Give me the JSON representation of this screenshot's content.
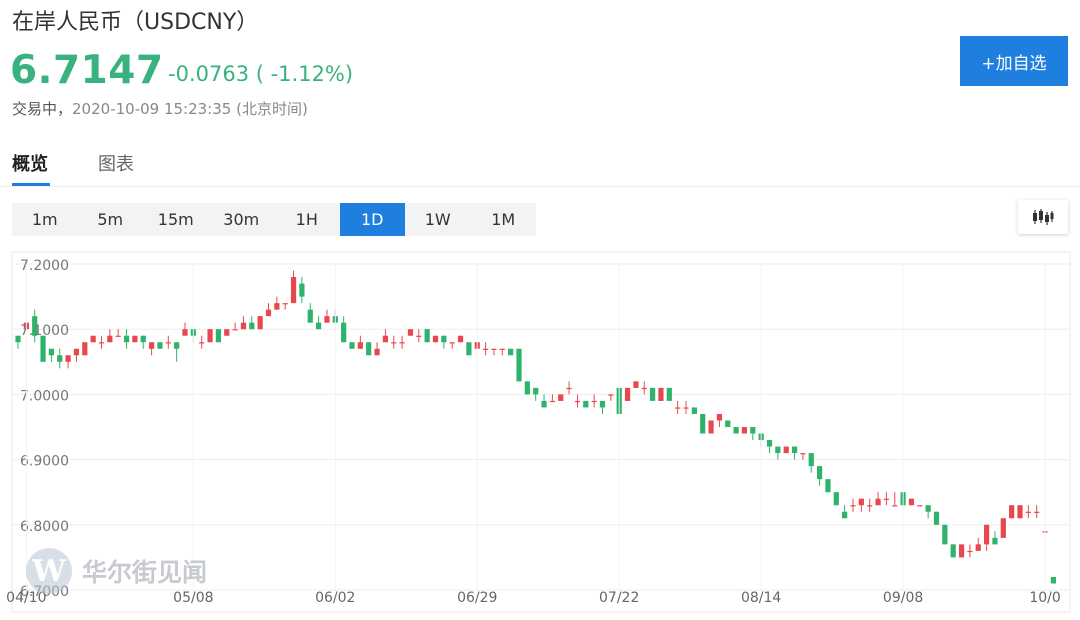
{
  "header": {
    "title": "在岸人民币（USDCNY）",
    "price": "6.7147",
    "change": "-0.0763 ( -1.12%)",
    "status": "交易中，",
    "timestamp": "2020-10-09 15:23:35 (北京时间)",
    "add_button": "+加自选"
  },
  "tabs": [
    {
      "label": "概览",
      "active": true
    },
    {
      "label": "图表",
      "active": false
    }
  ],
  "periods": [
    {
      "label": "1m",
      "active": false
    },
    {
      "label": "5m",
      "active": false
    },
    {
      "label": "15m",
      "active": false
    },
    {
      "label": "30m",
      "active": false
    },
    {
      "label": "1H",
      "active": false
    },
    {
      "label": "1D",
      "active": true
    },
    {
      "label": "1W",
      "active": false
    },
    {
      "label": "1M",
      "active": false
    }
  ],
  "chart_type_icon": "candlestick-icon",
  "watermark": {
    "logo": "W",
    "text": "华尔街见闻"
  },
  "colors": {
    "up": "#e8474d",
    "down": "#2fb36a",
    "accent": "#1f7fde"
  },
  "chart_data": {
    "type": "candlestick",
    "ylim": [
      6.7,
      7.2
    ],
    "yticks": [
      "7.2000",
      "7.1000",
      "7.0000",
      "6.9000",
      "6.8000",
      "6.7000"
    ],
    "x_tick_labels": [
      {
        "label": "04/10",
        "at": 1
      },
      {
        "label": "05/08",
        "at": 21
      },
      {
        "label": "06/02",
        "at": 38
      },
      {
        "label": "06/29",
        "at": 55
      },
      {
        "label": "07/22",
        "at": 72
      },
      {
        "label": "08/14",
        "at": 89
      },
      {
        "label": "09/08",
        "at": 106
      },
      {
        "label": "10/0",
        "at": 123
      }
    ],
    "grid": true,
    "candles": [
      [
        7.09,
        7.08,
        7.07,
        7.09
      ],
      [
        7.1,
        7.11,
        7.1,
        7.11
      ],
      [
        7.12,
        7.09,
        7.08,
        7.13
      ],
      [
        7.09,
        7.05,
        7.05,
        7.09
      ],
      [
        7.07,
        7.06,
        7.05,
        7.07
      ],
      [
        7.06,
        7.05,
        7.04,
        7.07
      ],
      [
        7.05,
        7.06,
        7.04,
        7.06
      ],
      [
        7.06,
        7.07,
        7.05,
        7.07
      ],
      [
        7.06,
        7.08,
        7.06,
        7.08
      ],
      [
        7.08,
        7.09,
        7.08,
        7.09
      ],
      [
        7.08,
        7.08,
        7.07,
        7.09
      ],
      [
        7.08,
        7.09,
        7.08,
        7.1
      ],
      [
        7.09,
        7.09,
        7.09,
        7.1
      ],
      [
        7.09,
        7.08,
        7.07,
        7.1
      ],
      [
        7.08,
        7.09,
        7.08,
        7.09
      ],
      [
        7.09,
        7.08,
        7.07,
        7.09
      ],
      [
        7.07,
        7.08,
        7.06,
        7.08
      ],
      [
        7.08,
        7.07,
        7.07,
        7.08
      ],
      [
        7.08,
        7.08,
        7.07,
        7.09
      ],
      [
        7.08,
        7.07,
        7.05,
        7.08
      ],
      [
        7.09,
        7.1,
        7.09,
        7.11
      ],
      [
        7.1,
        7.09,
        7.08,
        7.1
      ],
      [
        7.08,
        7.08,
        7.07,
        7.09
      ],
      [
        7.08,
        7.1,
        7.08,
        7.1
      ],
      [
        7.1,
        7.08,
        7.08,
        7.1
      ],
      [
        7.09,
        7.1,
        7.09,
        7.1
      ],
      [
        7.1,
        7.1,
        7.1,
        7.11
      ],
      [
        7.1,
        7.11,
        7.1,
        7.12
      ],
      [
        7.11,
        7.1,
        7.1,
        7.12
      ],
      [
        7.1,
        7.12,
        7.1,
        7.12
      ],
      [
        7.12,
        7.13,
        7.12,
        7.14
      ],
      [
        7.13,
        7.14,
        7.13,
        7.15
      ],
      [
        7.14,
        7.14,
        7.13,
        7.14
      ],
      [
        7.14,
        7.18,
        7.14,
        7.19
      ],
      [
        7.17,
        7.15,
        7.14,
        7.18
      ],
      [
        7.13,
        7.11,
        7.11,
        7.14
      ],
      [
        7.11,
        7.1,
        7.1,
        7.12
      ],
      [
        7.11,
        7.12,
        7.11,
        7.13
      ],
      [
        7.12,
        7.11,
        7.11,
        7.13
      ],
      [
        7.11,
        7.08,
        7.08,
        7.12
      ],
      [
        7.08,
        7.07,
        7.07,
        7.08
      ],
      [
        7.07,
        7.08,
        7.07,
        7.09
      ],
      [
        7.08,
        7.06,
        7.06,
        7.08
      ],
      [
        7.06,
        7.07,
        7.06,
        7.08
      ],
      [
        7.08,
        7.09,
        7.08,
        7.1
      ],
      [
        7.08,
        7.08,
        7.07,
        7.09
      ],
      [
        7.08,
        7.08,
        7.07,
        7.09
      ],
      [
        7.09,
        7.1,
        7.09,
        7.1
      ],
      [
        7.09,
        7.09,
        7.08,
        7.1
      ],
      [
        7.1,
        7.08,
        7.08,
        7.1
      ],
      [
        7.08,
        7.09,
        7.08,
        7.09
      ],
      [
        7.09,
        7.08,
        7.07,
        7.09
      ],
      [
        7.08,
        7.08,
        7.07,
        7.08
      ],
      [
        7.08,
        7.09,
        7.08,
        7.09
      ],
      [
        7.08,
        7.06,
        7.06,
        7.08
      ],
      [
        7.07,
        7.08,
        7.07,
        7.08
      ],
      [
        7.07,
        7.07,
        7.06,
        7.08
      ],
      [
        7.07,
        7.07,
        7.06,
        7.07
      ],
      [
        7.07,
        7.07,
        7.06,
        7.07
      ],
      [
        7.07,
        7.06,
        7.06,
        7.07
      ],
      [
        7.07,
        7.02,
        7.02,
        7.07
      ],
      [
        7.02,
        7.0,
        7.0,
        7.02
      ],
      [
        7.01,
        7.0,
        6.99,
        7.01
      ],
      [
        6.99,
        6.98,
        6.98,
        7.0
      ],
      [
        6.99,
        6.99,
        6.99,
        7.0
      ],
      [
        6.99,
        7.0,
        6.99,
        7.0
      ],
      [
        7.01,
        7.01,
        7.0,
        7.02
      ],
      [
        6.99,
        6.99,
        6.98,
        7.0
      ],
      [
        6.99,
        6.98,
        6.98,
        6.99
      ],
      [
        6.99,
        6.99,
        6.98,
        7.0
      ],
      [
        6.99,
        6.98,
        6.97,
        6.99
      ],
      [
        7.0,
        7.0,
        6.99,
        7.0
      ],
      [
        7.01,
        6.97,
        6.97,
        7.01
      ],
      [
        6.99,
        7.01,
        6.99,
        7.01
      ],
      [
        7.01,
        7.02,
        7.01,
        7.02
      ],
      [
        7.01,
        7.01,
        7.0,
        7.02
      ],
      [
        7.01,
        6.99,
        6.99,
        7.01
      ],
      [
        6.99,
        7.01,
        6.99,
        7.01
      ],
      [
        7.01,
        6.99,
        6.99,
        7.01
      ],
      [
        6.98,
        6.98,
        6.97,
        6.99
      ],
      [
        6.98,
        6.98,
        6.97,
        6.99
      ],
      [
        6.98,
        6.97,
        6.97,
        6.98
      ],
      [
        6.97,
        6.94,
        6.94,
        6.97
      ],
      [
        6.94,
        6.96,
        6.94,
        6.96
      ],
      [
        6.96,
        6.97,
        6.95,
        6.97
      ],
      [
        6.96,
        6.95,
        6.95,
        6.96
      ],
      [
        6.95,
        6.94,
        6.94,
        6.95
      ],
      [
        6.94,
        6.95,
        6.94,
        6.95
      ],
      [
        6.95,
        6.94,
        6.93,
        6.95
      ],
      [
        6.94,
        6.93,
        6.92,
        6.94
      ],
      [
        6.93,
        6.92,
        6.91,
        6.93
      ],
      [
        6.92,
        6.91,
        6.9,
        6.92
      ],
      [
        6.91,
        6.92,
        6.91,
        6.92
      ],
      [
        6.92,
        6.91,
        6.9,
        6.92
      ],
      [
        6.91,
        6.91,
        6.9,
        6.91
      ],
      [
        6.91,
        6.89,
        6.88,
        6.91
      ],
      [
        6.89,
        6.87,
        6.86,
        6.89
      ],
      [
        6.87,
        6.85,
        6.85,
        6.87
      ],
      [
        6.85,
        6.83,
        6.83,
        6.85
      ],
      [
        6.82,
        6.81,
        6.81,
        6.83
      ],
      [
        6.83,
        6.83,
        6.82,
        6.84
      ],
      [
        6.83,
        6.84,
        6.82,
        6.84
      ],
      [
        6.83,
        6.83,
        6.82,
        6.84
      ],
      [
        6.83,
        6.84,
        6.83,
        6.85
      ],
      [
        6.84,
        6.84,
        6.83,
        6.85
      ],
      [
        6.83,
        6.83,
        6.83,
        6.85
      ],
      [
        6.85,
        6.83,
        6.83,
        6.85
      ],
      [
        6.83,
        6.84,
        6.83,
        6.84
      ],
      [
        6.83,
        6.83,
        6.83,
        6.83
      ],
      [
        6.83,
        6.82,
        6.81,
        6.83
      ],
      [
        6.82,
        6.8,
        6.8,
        6.82
      ],
      [
        6.8,
        6.77,
        6.77,
        6.8
      ],
      [
        6.77,
        6.75,
        6.75,
        6.77
      ],
      [
        6.75,
        6.77,
        6.75,
        6.77
      ],
      [
        6.76,
        6.76,
        6.75,
        6.77
      ],
      [
        6.76,
        6.77,
        6.76,
        6.78
      ],
      [
        6.77,
        6.8,
        6.76,
        6.8
      ],
      [
        6.78,
        6.77,
        6.77,
        6.79
      ],
      [
        6.78,
        6.81,
        6.78,
        6.81
      ],
      [
        6.81,
        6.83,
        6.81,
        6.83
      ],
      [
        6.81,
        6.83,
        6.81,
        6.83
      ],
      [
        6.82,
        6.82,
        6.81,
        6.83
      ],
      [
        6.82,
        6.82,
        6.81,
        6.83
      ],
      [
        6.79,
        6.79,
        6.79,
        6.79
      ],
      [
        6.72,
        6.71,
        6.71,
        6.72
      ]
    ]
  }
}
